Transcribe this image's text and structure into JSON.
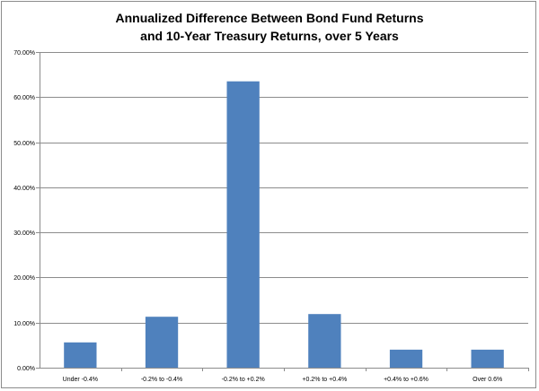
{
  "chart_data": {
    "type": "bar",
    "title_lines": [
      "Annualized Difference Between Bond Fund Returns",
      "and 10-Year Treasury Returns, over 5 Years"
    ],
    "categories": [
      "Under -0.4%",
      "-0.2% to -0.4%",
      "-0.2% to +0.2%",
      "+0.2% to +0.4%",
      "+0.4% to +0.6%",
      "Over 0.6%"
    ],
    "values": [
      5.6,
      11.3,
      63.5,
      11.9,
      4.0,
      4.0
    ],
    "yticks": [
      "0.00%",
      "10.00%",
      "20.00%",
      "30.00%",
      "40.00%",
      "50.00%",
      "60.00%",
      "70.00%"
    ],
    "ylim": [
      0,
      70
    ],
    "grid": true,
    "colors": {
      "bar": "#4f81bd",
      "grid": "#8c8c8c",
      "axis": "#8c8c8c"
    }
  }
}
